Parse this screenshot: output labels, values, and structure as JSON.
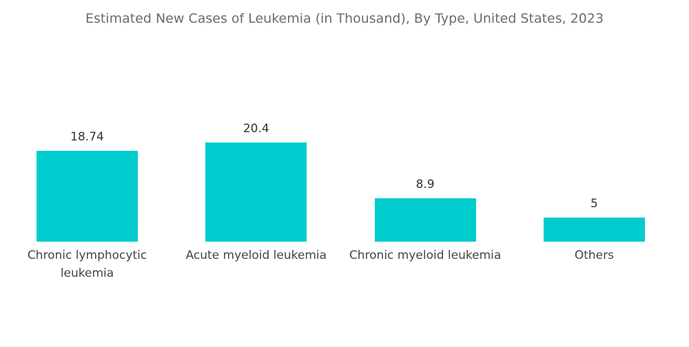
{
  "chart_data": {
    "type": "bar",
    "title": "Estimated New Cases of Leukemia (in Thousand), By Type, United States, 2023",
    "categories": [
      "Chronic lymphocytic leukemia",
      "Acute myeloid leukemia",
      "Chronic myeloid leukemia",
      "Others"
    ],
    "values": [
      18.74,
      20.4,
      8.9,
      5
    ],
    "color": "#00ccce"
  }
}
